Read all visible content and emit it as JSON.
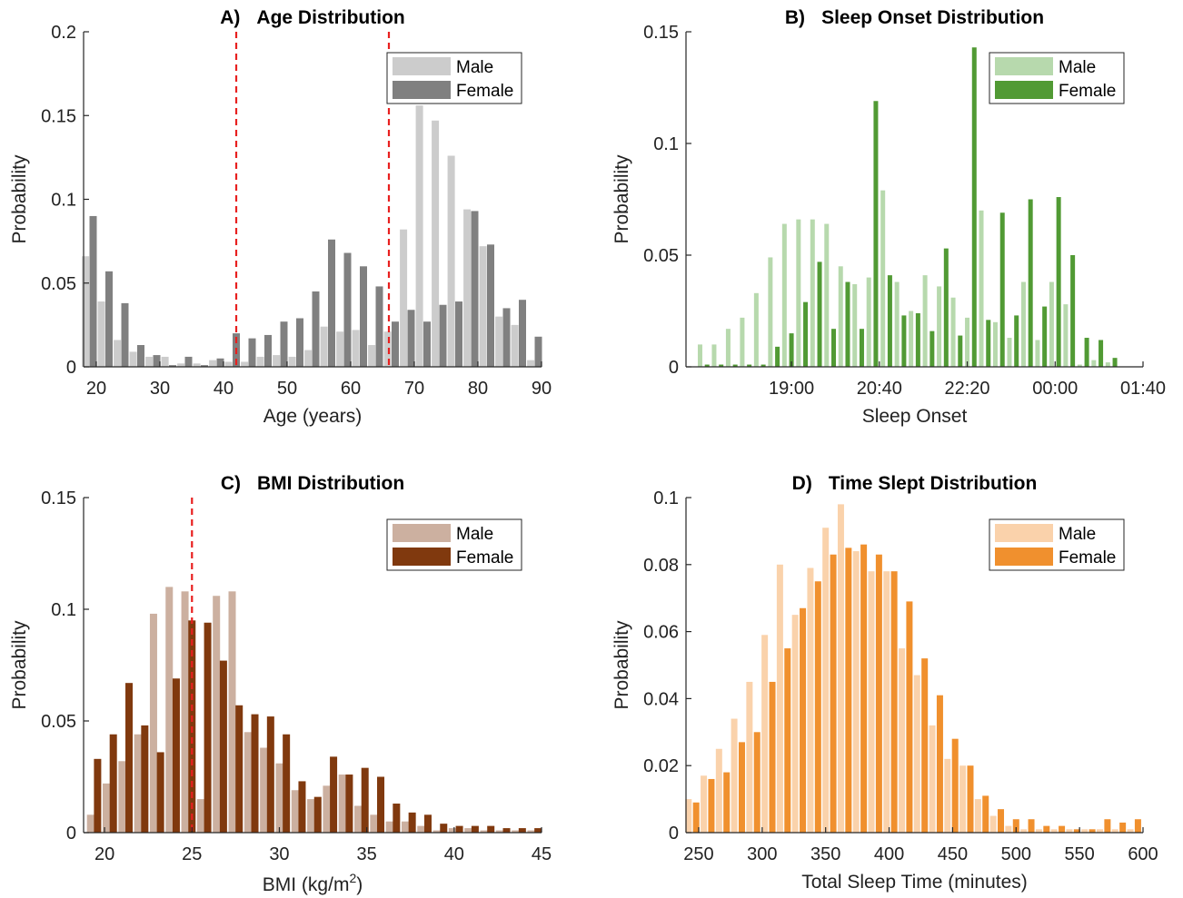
{
  "chart_data": [
    {
      "type": "bar",
      "letter": "A)",
      "title": "Age Distribution",
      "xlabel": "Age (years)",
      "ylabel": "Probability",
      "xlim": [
        18,
        90
      ],
      "ylim": [
        0,
        0.2
      ],
      "xticks": [
        "20",
        "30",
        "40",
        "50",
        "60",
        "70",
        "80",
        "90"
      ],
      "yticks": [
        "0",
        "0.05",
        "0.1",
        "0.15",
        "0.2"
      ],
      "reference_lines": [
        42,
        66
      ],
      "legend_position": "top-right",
      "series": [
        {
          "name": "Male",
          "color": "#cccccc",
          "x": [
            18.3,
            20.8,
            23.3,
            25.8,
            28.3,
            30.8,
            33.3,
            35.8,
            38.3,
            40.8,
            43.3,
            45.8,
            48.3,
            50.8,
            53.3,
            55.8,
            58.3,
            60.8,
            63.3,
            65.8,
            68.3,
            70.8,
            73.3,
            75.8,
            78.3,
            80.8,
            83.3,
            85.8,
            88.3
          ],
          "values": [
            0.066,
            0.039,
            0.016,
            0.009,
            0.006,
            0.006,
            0.002,
            0.002,
            0.004,
            0.003,
            0.003,
            0.006,
            0.007,
            0.006,
            0.01,
            0.024,
            0.021,
            0.022,
            0.013,
            0.021,
            0.082,
            0.156,
            0.147,
            0.126,
            0.094,
            0.072,
            0.03,
            0.025,
            0.004
          ]
        },
        {
          "name": "Female",
          "color": "#808080",
          "x": [
            19.5,
            22.0,
            24.5,
            27.0,
            29.5,
            32.0,
            34.5,
            37.0,
            39.5,
            42.0,
            44.5,
            47.0,
            49.5,
            52.0,
            54.5,
            57.0,
            59.5,
            62.0,
            64.5,
            67.0,
            69.5,
            72.0,
            74.5,
            77.0,
            79.5,
            82.0,
            84.5,
            87.0,
            89.5
          ],
          "values": [
            0.09,
            0.057,
            0.038,
            0.013,
            0.007,
            0.001,
            0.006,
            0.001,
            0.005,
            0.02,
            0.017,
            0.019,
            0.027,
            0.029,
            0.045,
            0.076,
            0.068,
            0.06,
            0.048,
            0.027,
            0.034,
            0.027,
            0.037,
            0.039,
            0.093,
            0.073,
            0.035,
            0.04,
            0.018
          ]
        }
      ]
    },
    {
      "type": "bar",
      "letter": "B)",
      "title": "Sleep Onset Distribution",
      "xlabel": "Sleep Onset",
      "ylabel": "Probability",
      "xlim_minutes": [
        1020,
        1540
      ],
      "ylim": [
        0,
        0.15
      ],
      "xticks": [
        "19:00",
        "20:40",
        "22:20",
        "00:00",
        "01:40"
      ],
      "yticks": [
        "0",
        "0.05",
        "0.1",
        "0.15"
      ],
      "legend_position": "top-right",
      "series": [
        {
          "name": "Male",
          "color": "#b7d9ad",
          "x": [
            1036,
            1052,
            1068,
            1084,
            1100,
            1116,
            1132,
            1148,
            1164,
            1180,
            1196,
            1212,
            1228,
            1244,
            1260,
            1276,
            1292,
            1308,
            1324,
            1340,
            1356,
            1372,
            1388,
            1404,
            1420,
            1436,
            1452,
            1468,
            1484,
            1500
          ],
          "values": [
            0.01,
            0.01,
            0.017,
            0.022,
            0.033,
            0.049,
            0.064,
            0.066,
            0.066,
            0.064,
            0.045,
            0.037,
            0.04,
            0.079,
            0.038,
            0.025,
            0.041,
            0.036,
            0.031,
            0.022,
            0.07,
            0.02,
            0.013,
            0.038,
            0.012,
            0.038,
            0.028,
            0.001,
            0.003,
            0.002
          ]
        },
        {
          "name": "Female",
          "color": "#519a34",
          "x": [
            1044,
            1060,
            1076,
            1092,
            1108,
            1124,
            1140,
            1156,
            1172,
            1188,
            1204,
            1220,
            1236,
            1252,
            1268,
            1284,
            1300,
            1316,
            1332,
            1348,
            1364,
            1380,
            1396,
            1412,
            1428,
            1444,
            1460,
            1476,
            1492,
            1508
          ],
          "values": [
            0.001,
            0.001,
            0.001,
            0.001,
            0.001,
            0.009,
            0.015,
            0.029,
            0.047,
            0.017,
            0.038,
            0.017,
            0.119,
            0.041,
            0.023,
            0.024,
            0.016,
            0.053,
            0.014,
            0.143,
            0.021,
            0.069,
            0.023,
            0.075,
            0.027,
            0.076,
            0.05,
            0.013,
            0.012,
            0.004
          ]
        }
      ]
    },
    {
      "type": "bar",
      "letter": "C)",
      "title": "BMI Distribution",
      "xlabel_pre": "BMI (kg/m",
      "xlabel_sup": "2",
      "xlabel_post": ")",
      "ylabel": "Probability",
      "xlim": [
        18.8,
        45
      ],
      "ylim": [
        0,
        0.15
      ],
      "xticks": [
        "20",
        "25",
        "30",
        "35",
        "40",
        "45"
      ],
      "yticks": [
        "0",
        "0.05",
        "0.1",
        "0.15"
      ],
      "reference_lines": [
        25
      ],
      "legend_position": "top-right",
      "series": [
        {
          "name": "Male",
          "color": "#ccb0a0",
          "x": [
            19.2,
            20.1,
            21.0,
            21.9,
            22.8,
            23.7,
            24.6,
            25.5,
            26.4,
            27.3,
            28.2,
            29.1,
            30.0,
            30.9,
            31.8,
            32.7,
            33.6,
            34.5,
            35.4,
            36.3,
            37.2,
            38.1,
            39.0,
            39.9,
            40.8,
            41.7,
            42.6,
            43.5,
            44.4
          ],
          "values": [
            0.008,
            0.022,
            0.032,
            0.044,
            0.098,
            0.11,
            0.108,
            0.015,
            0.106,
            0.108,
            0.045,
            0.038,
            0.031,
            0.019,
            0.015,
            0.021,
            0.026,
            0.012,
            0.008,
            0.005,
            0.005,
            0.003,
            0.001,
            0.002,
            0.002,
            0.001,
            0.001,
            0.001,
            0.001
          ]
        },
        {
          "name": "Female",
          "color": "#80390e",
          "x": [
            19.6,
            20.5,
            21.4,
            22.3,
            23.2,
            24.1,
            25.0,
            25.9,
            26.8,
            27.7,
            28.6,
            29.5,
            30.4,
            31.3,
            32.2,
            33.1,
            34.0,
            34.9,
            35.8,
            36.7,
            37.6,
            38.5,
            39.4,
            40.3,
            41.2,
            42.1,
            43.0,
            43.9,
            44.8
          ],
          "values": [
            0.033,
            0.044,
            0.067,
            0.048,
            0.036,
            0.069,
            0.095,
            0.094,
            0.077,
            0.057,
            0.053,
            0.052,
            0.044,
            0.023,
            0.016,
            0.034,
            0.026,
            0.029,
            0.025,
            0.013,
            0.009,
            0.008,
            0.004,
            0.003,
            0.003,
            0.003,
            0.002,
            0.002,
            0.002
          ]
        }
      ]
    },
    {
      "type": "bar",
      "letter": "D)",
      "title": "Time Slept Distribution",
      "xlabel": "Total Sleep Time (minutes)",
      "ylabel": "Probability",
      "xlim": [
        240,
        600
      ],
      "ylim": [
        0,
        0.1
      ],
      "xticks": [
        "250",
        "300",
        "350",
        "400",
        "450",
        "500",
        "550",
        "600"
      ],
      "yticks": [
        "0",
        "0.02",
        "0.04",
        "0.06",
        "0.08",
        "0.1"
      ],
      "legend_position": "top-right",
      "series": [
        {
          "name": "Male",
          "color": "#fad2ab",
          "x": [
            242,
            254,
            266,
            278,
            290,
            302,
            314,
            326,
            338,
            350,
            362,
            374,
            386,
            398,
            410,
            422,
            434,
            446,
            458,
            470,
            482,
            494,
            506,
            518,
            530,
            542,
            554,
            566,
            578,
            590
          ],
          "values": [
            0.01,
            0.017,
            0.025,
            0.034,
            0.045,
            0.059,
            0.08,
            0.065,
            0.079,
            0.091,
            0.098,
            0.084,
            0.078,
            0.078,
            0.055,
            0.047,
            0.032,
            0.022,
            0.02,
            0.01,
            0.005,
            0.002,
            0.001,
            0.001,
            0.001,
            0.001,
            0.001,
            0.001,
            0.001,
            0.001
          ]
        },
        {
          "name": "Female",
          "color": "#f0902e",
          "x": [
            248,
            260,
            272,
            284,
            296,
            308,
            320,
            332,
            344,
            356,
            368,
            380,
            392,
            404,
            416,
            428,
            440,
            452,
            464,
            476,
            488,
            500,
            512,
            524,
            536,
            548,
            560,
            572,
            584,
            596
          ],
          "values": [
            0.009,
            0.016,
            0.018,
            0.027,
            0.03,
            0.045,
            0.055,
            0.067,
            0.075,
            0.083,
            0.085,
            0.086,
            0.083,
            0.078,
            0.069,
            0.052,
            0.041,
            0.028,
            0.02,
            0.011,
            0.007,
            0.004,
            0.004,
            0.002,
            0.002,
            0.001,
            0.001,
            0.004,
            0.003,
            0.004
          ]
        }
      ]
    }
  ]
}
